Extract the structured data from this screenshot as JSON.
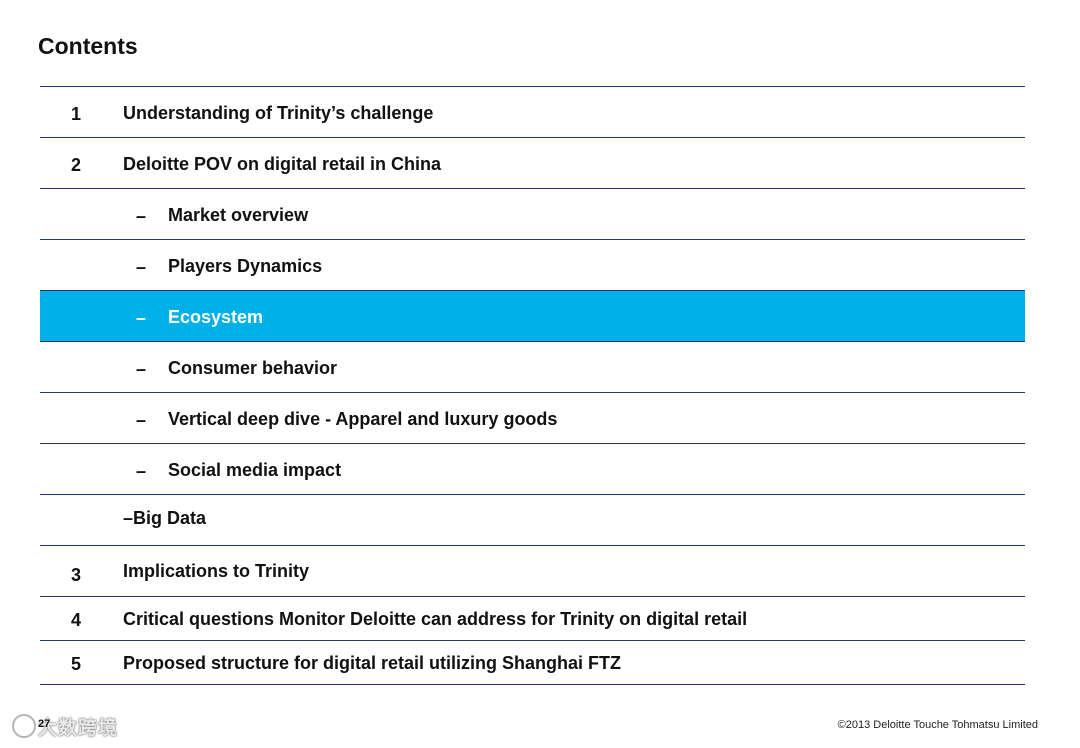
{
  "title": "Contents",
  "items": [
    {
      "num": "1",
      "label": "Understanding of Trinity’s challenge"
    },
    {
      "num": "2",
      "label": "Deloitte POV on digital retail in China"
    },
    {
      "dash": "–",
      "label": "Market overview"
    },
    {
      "dash": "–",
      "label": "Players Dynamics"
    },
    {
      "dash": "–",
      "label": "Ecosystem"
    },
    {
      "dash": "–",
      "label": "Consumer behavior"
    },
    {
      "dash": "–",
      "label": "Vertical deep dive - Apparel and luxury goods"
    },
    {
      "dash": "–",
      "label": "Social media impact"
    },
    {
      "label": "–Big Data"
    },
    {
      "num": "3",
      "label": "Implications to Trinity"
    },
    {
      "num": "4",
      "label": "Critical questions Monitor Deloitte can address for Trinity on digital retail"
    },
    {
      "num": "5",
      "label": "Proposed structure for digital retail utilizing Shanghai FTZ"
    }
  ],
  "highlight_color": "#00b0e6",
  "rule_color": "#1f3b73",
  "footer": {
    "page_number": "27",
    "watermark": "大数跨境",
    "copyright": "©2013 Deloitte Touche Tohmatsu Limited"
  }
}
